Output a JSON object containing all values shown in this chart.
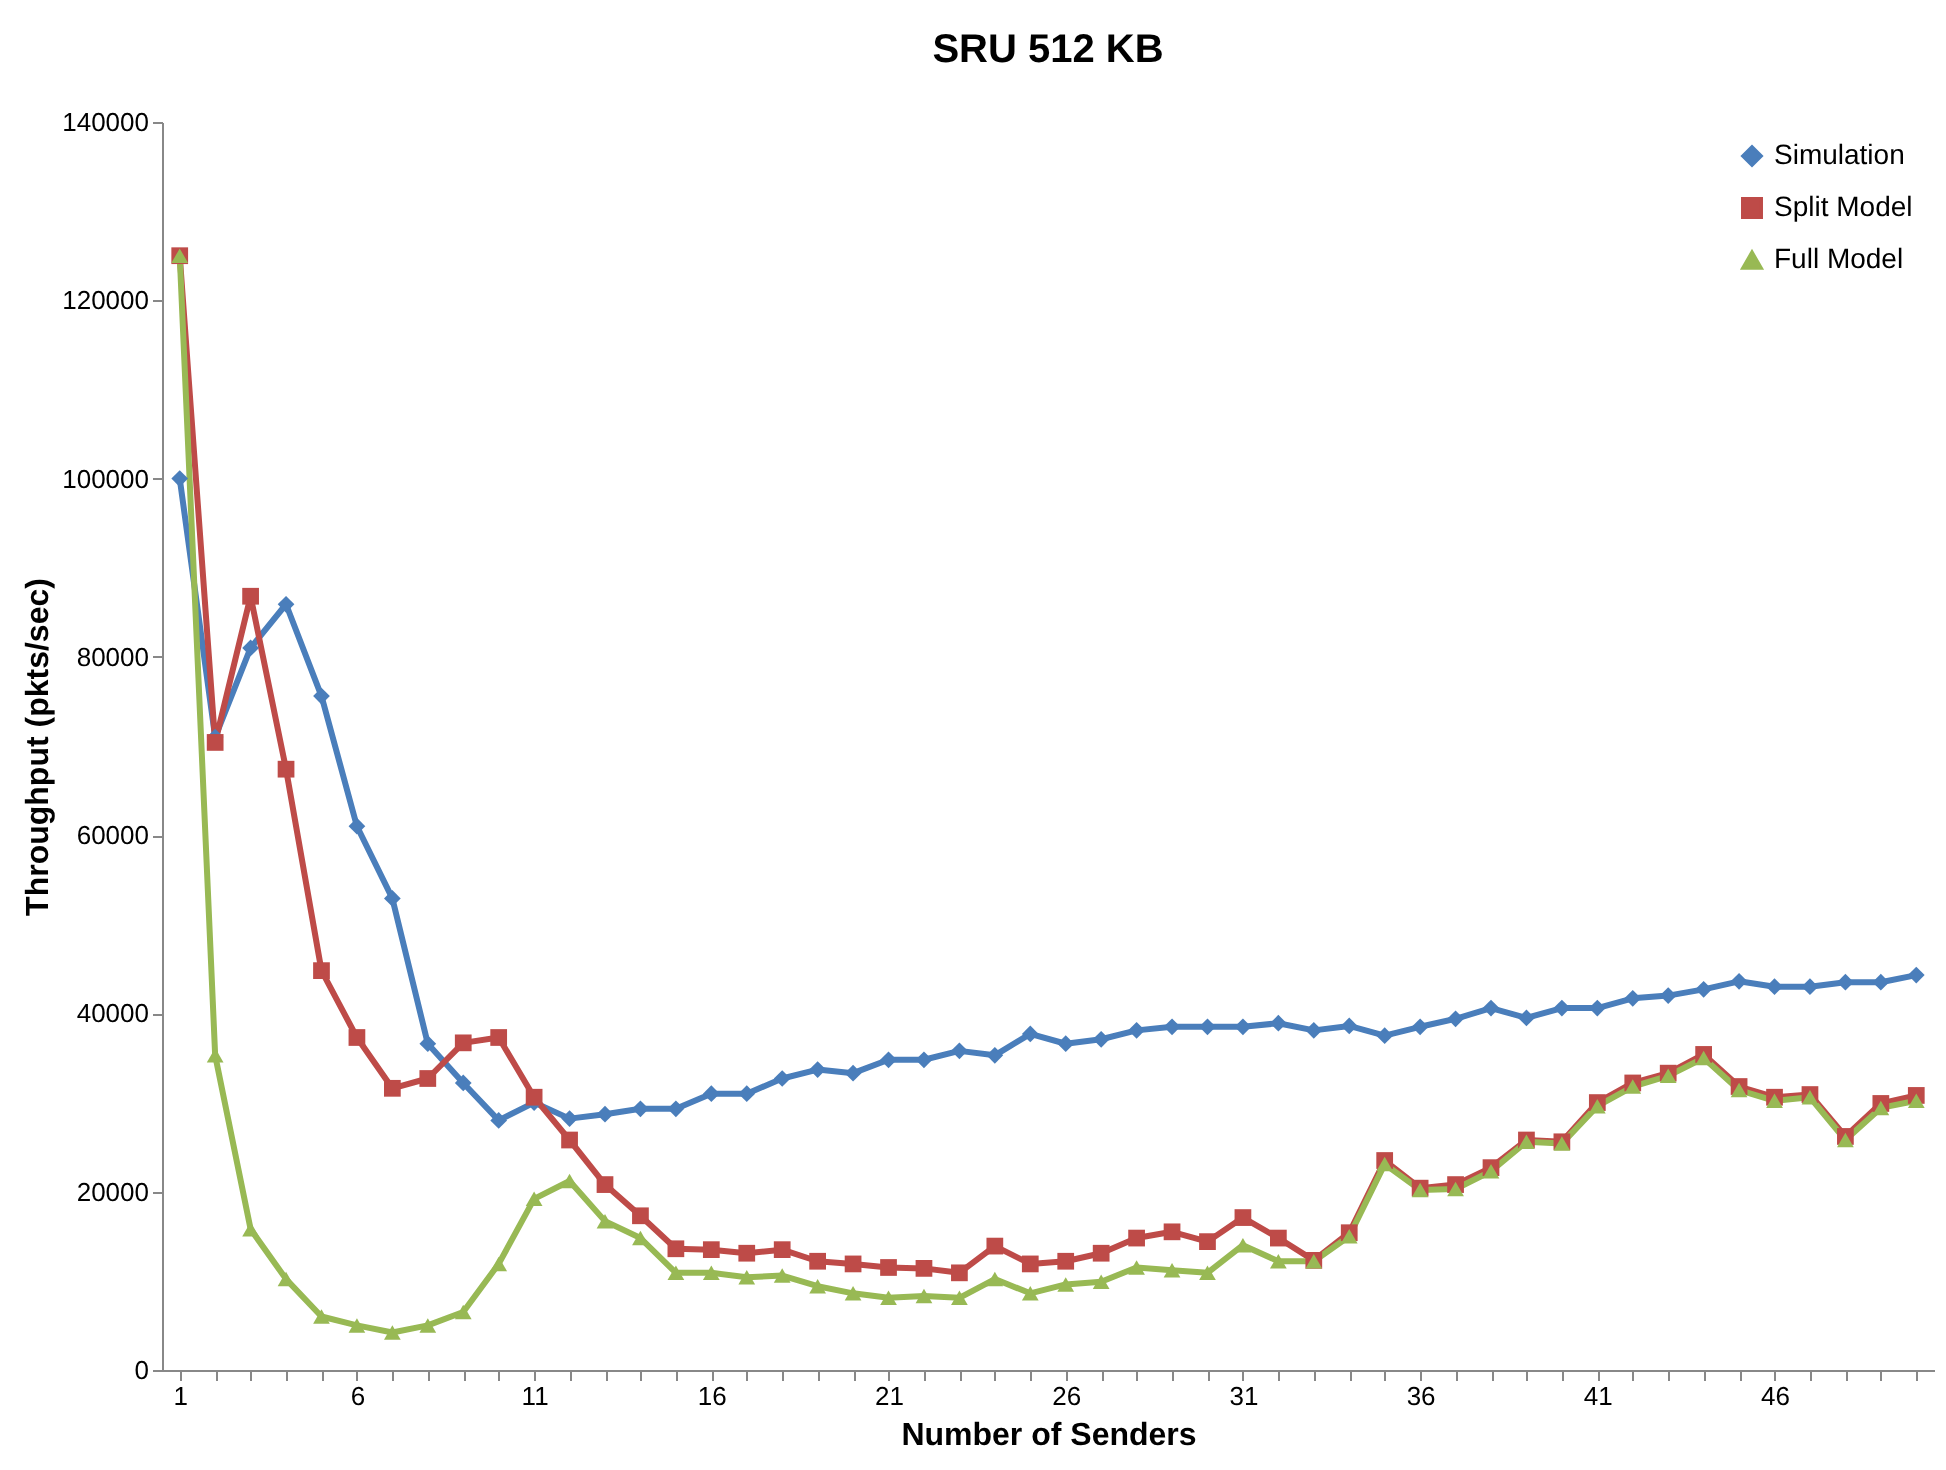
{
  "chart_data": {
    "type": "line",
    "title": "SRU 512 KB",
    "xlabel": "Number of Senders",
    "ylabel": "Throughput (pkts/sec)",
    "categories": [
      "1",
      null,
      null,
      null,
      null,
      "6",
      null,
      null,
      null,
      null,
      "11",
      null,
      null,
      null,
      null,
      "16",
      null,
      null,
      null,
      null,
      "21",
      null,
      null,
      null,
      null,
      "26",
      null,
      null,
      null,
      null,
      "31",
      null,
      null,
      null,
      null,
      "36",
      null,
      null,
      null,
      null,
      "41",
      null,
      null,
      null,
      null,
      "46",
      null,
      null,
      null,
      null
    ],
    "series": [
      {
        "name": "Simulation",
        "color": "#4a7ebb",
        "marker": "diamond",
        "values": [
          100000,
          71000,
          81000,
          85900,
          75600,
          61000,
          52900,
          36600,
          32200,
          28000,
          30000,
          28200,
          28700,
          29300,
          29300,
          31000,
          31000,
          32700,
          33700,
          33300,
          34800,
          34800,
          35800,
          35300,
          37700,
          36600,
          37100,
          38100,
          38500,
          38500,
          38500,
          38900,
          38100,
          38600,
          37500,
          38500,
          39400,
          40600,
          39500,
          40600,
          40600,
          41700,
          42000,
          42700,
          43600,
          43000,
          43000,
          43500,
          43500,
          44300
        ]
      },
      {
        "name": "Split Model",
        "color": "#be4b48",
        "marker": "square",
        "values": [
          125000,
          70400,
          86800,
          67400,
          44800,
          37300,
          31600,
          32700,
          36700,
          37300,
          30600,
          25800,
          20800,
          17300,
          13600,
          13500,
          13100,
          13500,
          12200,
          11900,
          11500,
          11400,
          10900,
          13900,
          11900,
          12200,
          13100,
          14800,
          15500,
          14400,
          17100,
          14800,
          12300,
          15400,
          23500,
          20400,
          20800,
          22700,
          25800,
          25600,
          30000,
          32200,
          33300,
          35400,
          31800,
          30600,
          30900,
          26200,
          29900,
          30800
        ]
      },
      {
        "name": "Full Model",
        "color": "#98b954",
        "marker": "triangle",
        "values": [
          125000,
          35300,
          15800,
          10200,
          6000,
          5000,
          4200,
          5000,
          6500,
          11900,
          19200,
          21200,
          16700,
          14800,
          10900,
          10900,
          10400,
          10600,
          9400,
          8600,
          8100,
          8300,
          8100,
          10200,
          8600,
          9600,
          9900,
          11500,
          11200,
          10900,
          14000,
          12200,
          12200,
          15000,
          23100,
          20200,
          20300,
          22300,
          25600,
          25400,
          29600,
          31800,
          33000,
          35000,
          31400,
          30200,
          30600,
          25800,
          29400,
          30200
        ]
      }
    ],
    "ylim": [
      0,
      140000
    ],
    "yticks": [
      0,
      20000,
      40000,
      60000,
      80000,
      100000,
      120000,
      140000
    ],
    "grid": false,
    "legend": "top right"
  }
}
